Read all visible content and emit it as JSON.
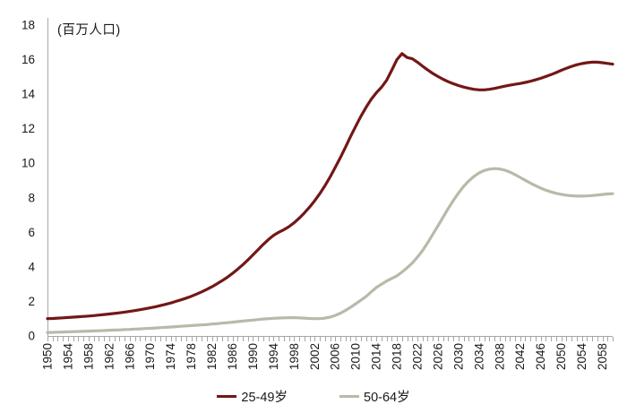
{
  "chart_data": {
    "type": "line",
    "title": "",
    "unit_label": "(百万人口)",
    "xlabel": "",
    "ylabel": "百万人口",
    "ylim": [
      0,
      18
    ],
    "y_ticks": [
      0,
      2,
      4,
      6,
      8,
      10,
      12,
      14,
      16,
      18
    ],
    "x_tick_label_step": 4,
    "x_tick_labels": [
      "1950",
      "1954",
      "1958",
      "1962",
      "1966",
      "1970",
      "1974",
      "1978",
      "1982",
      "1986",
      "1990",
      "1994",
      "1998",
      "2002",
      "2006",
      "2010",
      "2014",
      "2018",
      "2022",
      "2026",
      "2030",
      "2034",
      "2038",
      "2042",
      "2046",
      "2050",
      "2054",
      "2058"
    ],
    "grid": false,
    "legend_position": "bottom",
    "axis_color": "#a6a6a6",
    "tick_color": "#a6a6a6",
    "text_color": "#1a1a1a",
    "x": [
      1950,
      1951,
      1952,
      1953,
      1954,
      1955,
      1956,
      1957,
      1958,
      1959,
      1960,
      1961,
      1962,
      1963,
      1964,
      1965,
      1966,
      1967,
      1968,
      1969,
      1970,
      1971,
      1972,
      1973,
      1974,
      1975,
      1976,
      1977,
      1978,
      1979,
      1980,
      1981,
      1982,
      1983,
      1984,
      1985,
      1986,
      1987,
      1988,
      1989,
      1990,
      1991,
      1992,
      1993,
      1994,
      1995,
      1996,
      1997,
      1998,
      1999,
      2000,
      2001,
      2002,
      2003,
      2004,
      2005,
      2006,
      2007,
      2008,
      2009,
      2010,
      2011,
      2012,
      2013,
      2014,
      2015,
      2016,
      2017,
      2018,
      2019,
      2020,
      2021,
      2022,
      2023,
      2024,
      2025,
      2026,
      2027,
      2028,
      2029,
      2030,
      2031,
      2032,
      2033,
      2034,
      2035,
      2036,
      2037,
      2038,
      2039,
      2040,
      2041,
      2042,
      2043,
      2044,
      2045,
      2046,
      2047,
      2048,
      2049,
      2050,
      2051,
      2052,
      2053,
      2054,
      2055,
      2056,
      2057,
      2058,
      2059,
      2060
    ],
    "series": [
      {
        "name": "25-49岁",
        "color": "#731717",
        "values": [
          1.0,
          1.01,
          1.03,
          1.05,
          1.07,
          1.09,
          1.11,
          1.13,
          1.15,
          1.18,
          1.21,
          1.24,
          1.27,
          1.3,
          1.34,
          1.38,
          1.42,
          1.47,
          1.52,
          1.57,
          1.63,
          1.69,
          1.76,
          1.83,
          1.91,
          2.0,
          2.09,
          2.19,
          2.3,
          2.42,
          2.55,
          2.69,
          2.85,
          3.02,
          3.2,
          3.4,
          3.62,
          3.86,
          4.12,
          4.4,
          4.7,
          5.0,
          5.3,
          5.58,
          5.82,
          6.0,
          6.15,
          6.33,
          6.55,
          6.82,
          7.12,
          7.46,
          7.83,
          8.24,
          8.7,
          9.2,
          9.75,
          10.33,
          10.93,
          11.55,
          12.15,
          12.72,
          13.24,
          13.7,
          14.08,
          14.4,
          14.8,
          15.38,
          16.0,
          16.35,
          16.12,
          16.05,
          15.85,
          15.62,
          15.4,
          15.2,
          15.02,
          14.86,
          14.72,
          14.6,
          14.5,
          14.41,
          14.34,
          14.28,
          14.25,
          14.25,
          14.28,
          14.33,
          14.4,
          14.46,
          14.52,
          14.57,
          14.62,
          14.68,
          14.75,
          14.83,
          14.92,
          15.02,
          15.13,
          15.25,
          15.38,
          15.5,
          15.61,
          15.7,
          15.77,
          15.82,
          15.85,
          15.85,
          15.82,
          15.78,
          15.74
        ]
      },
      {
        "name": "50-64岁",
        "color": "#b9b9aa",
        "values": [
          0.2,
          0.21,
          0.22,
          0.23,
          0.24,
          0.25,
          0.26,
          0.27,
          0.28,
          0.29,
          0.3,
          0.31,
          0.33,
          0.34,
          0.35,
          0.37,
          0.38,
          0.4,
          0.41,
          0.43,
          0.44,
          0.46,
          0.48,
          0.5,
          0.52,
          0.54,
          0.56,
          0.58,
          0.6,
          0.62,
          0.64,
          0.66,
          0.69,
          0.71,
          0.74,
          0.77,
          0.8,
          0.83,
          0.86,
          0.89,
          0.92,
          0.95,
          0.98,
          1.0,
          1.02,
          1.04,
          1.05,
          1.06,
          1.06,
          1.05,
          1.03,
          1.01,
          1.0,
          1.0,
          1.03,
          1.09,
          1.19,
          1.32,
          1.48,
          1.66,
          1.86,
          2.07,
          2.29,
          2.55,
          2.8,
          3.0,
          3.18,
          3.33,
          3.48,
          3.7,
          3.95,
          4.22,
          4.56,
          4.95,
          5.4,
          5.88,
          6.38,
          6.88,
          7.38,
          7.85,
          8.28,
          8.66,
          8.98,
          9.24,
          9.44,
          9.58,
          9.66,
          9.69,
          9.67,
          9.6,
          9.49,
          9.34,
          9.18,
          9.01,
          8.85,
          8.7,
          8.56,
          8.44,
          8.34,
          8.26,
          8.2,
          8.15,
          8.12,
          8.1,
          8.1,
          8.11,
          8.13,
          8.16,
          8.19,
          8.22,
          8.24
        ]
      }
    ]
  }
}
